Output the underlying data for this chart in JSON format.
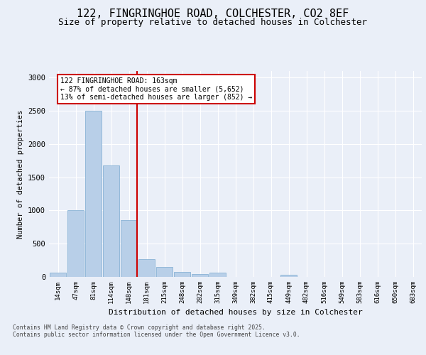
{
  "title_line1": "122, FINGRINGHOE ROAD, COLCHESTER, CO2 8EF",
  "title_line2": "Size of property relative to detached houses in Colchester",
  "xlabel": "Distribution of detached houses by size in Colchester",
  "ylabel": "Number of detached properties",
  "categories": [
    "14sqm",
    "47sqm",
    "81sqm",
    "114sqm",
    "148sqm",
    "181sqm",
    "215sqm",
    "248sqm",
    "282sqm",
    "315sqm",
    "349sqm",
    "382sqm",
    "415sqm",
    "449sqm",
    "482sqm",
    "516sqm",
    "549sqm",
    "583sqm",
    "616sqm",
    "650sqm",
    "683sqm"
  ],
  "values": [
    60,
    1000,
    2500,
    1680,
    850,
    270,
    155,
    70,
    45,
    60,
    0,
    0,
    0,
    30,
    0,
    0,
    0,
    0,
    0,
    0,
    0
  ],
  "bar_color": "#b8cfe8",
  "bar_edge_color": "#7aaad0",
  "property_line_color": "#cc0000",
  "annotation_text": "122 FINGRINGHOE ROAD: 163sqm\n← 87% of detached houses are smaller (5,652)\n13% of semi-detached houses are larger (852) →",
  "annotation_box_color": "#cc0000",
  "ylim": [
    0,
    3100
  ],
  "yticks": [
    0,
    500,
    1000,
    1500,
    2000,
    2500,
    3000
  ],
  "bg_color": "#eaeff8",
  "plot_bg_color": "#eaeff8",
  "footer_line1": "Contains HM Land Registry data © Crown copyright and database right 2025.",
  "footer_line2": "Contains public sector information licensed under the Open Government Licence v3.0.",
  "title_fontsize": 11,
  "subtitle_fontsize": 9,
  "bar_width": 0.9
}
